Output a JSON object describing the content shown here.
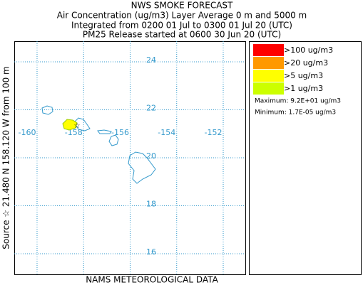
{
  "header": {
    "title": "NWS SMOKE FORECAST",
    "lines": [
      "Air Concentration (ug/m3) Layer Average    0 m and  5000 m",
      "Integrated from 0200 01 Jul to 0300 01 Jul 20 (UTC)",
      "PM25 Release started at 0600 30 Jun 20 (UTC)"
    ]
  },
  "map": {
    "xlim": [
      -160.98,
      -151.05
    ],
    "ylim": [
      15.14,
      24.86
    ],
    "xticks": [
      -160,
      -158,
      -156,
      -154,
      -152
    ],
    "yticks": [
      16,
      18,
      20,
      22,
      24
    ],
    "grid": true
  },
  "legend": {
    "items": [
      {
        "label": ">100 ug/m3",
        "color": "#ff0000"
      },
      {
        "label": ">20 ug/m3",
        "color": "#ff9900"
      },
      {
        "label": ">5 ug/m3",
        "color": "#ffff00"
      },
      {
        "label": ">1 ug/m3",
        "color": "#ccff00"
      }
    ],
    "maximum": "Maximum: 9.2E+01 ug/m3",
    "minimum": "Minimum: 1.7E-05 ug/m3"
  },
  "source_label": "Source ☆  21.480 N 158.120 W   from  100 m",
  "footer": "NAMS METEOROLOGICAL DATA"
}
